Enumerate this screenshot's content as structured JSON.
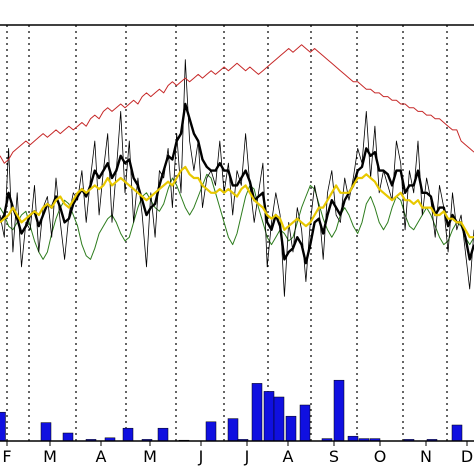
{
  "chart_data": {
    "type": "line",
    "title": "",
    "xlabel": "",
    "ylabel": "",
    "x_ticks": [
      "F",
      "M",
      "A",
      "M",
      "J",
      "J",
      "A",
      "S",
      "O",
      "N",
      "D"
    ],
    "grid": "vertical dotted lines at month boundaries",
    "legend": "none",
    "series": [
      {
        "style": "thin black line",
        "color": "#000000",
        "values": [
          0.5,
          0.44,
          0.68,
          0.4,
          0.56,
          0.36,
          0.48,
          0.46,
          0.58,
          0.4,
          0.52,
          0.55,
          0.44,
          0.6,
          0.48,
          0.38,
          0.5,
          0.56,
          0.54,
          0.62,
          0.48,
          0.6,
          0.7,
          0.5,
          0.62,
          0.72,
          0.48,
          0.62,
          0.78,
          0.56,
          0.7,
          0.48,
          0.6,
          0.5,
          0.36,
          0.56,
          0.44,
          0.62,
          0.6,
          0.68,
          0.52,
          0.72,
          0.56,
          0.92,
          0.7,
          0.62,
          0.7,
          0.52,
          0.6,
          0.62,
          0.58,
          0.7,
          0.56,
          0.64,
          0.5,
          0.62,
          0.58,
          0.72,
          0.58,
          0.48,
          0.56,
          0.64,
          0.36,
          0.48,
          0.56,
          0.5,
          0.28,
          0.48,
          0.4,
          0.52,
          0.46,
          0.32,
          0.48,
          0.58,
          0.52,
          0.38,
          0.56,
          0.62,
          0.5,
          0.48,
          0.6,
          0.54,
          0.6,
          0.68,
          0.64,
          0.78,
          0.6,
          0.74,
          0.56,
          0.62,
          0.58,
          0.54,
          0.7,
          0.64,
          0.46,
          0.62,
          0.56,
          0.7,
          0.5,
          0.6,
          0.54,
          0.44,
          0.58,
          0.52,
          0.4,
          0.56,
          0.46,
          0.5,
          0.4,
          0.3,
          0.46
        ]
      },
      {
        "style": "thick black line",
        "color": "#000000",
        "values": [
          0.48,
          0.5,
          0.56,
          0.52,
          0.49,
          0.45,
          0.47,
          0.5,
          0.51,
          0.47,
          0.5,
          0.53,
          0.52,
          0.55,
          0.52,
          0.48,
          0.49,
          0.53,
          0.55,
          0.57,
          0.55,
          0.58,
          0.62,
          0.6,
          0.62,
          0.64,
          0.6,
          0.62,
          0.66,
          0.64,
          0.65,
          0.6,
          0.58,
          0.54,
          0.5,
          0.52,
          0.53,
          0.58,
          0.62,
          0.66,
          0.65,
          0.7,
          0.72,
          0.8,
          0.76,
          0.72,
          0.7,
          0.65,
          0.63,
          0.62,
          0.62,
          0.64,
          0.62,
          0.62,
          0.58,
          0.58,
          0.6,
          0.62,
          0.59,
          0.54,
          0.55,
          0.56,
          0.48,
          0.46,
          0.5,
          0.47,
          0.38,
          0.4,
          0.41,
          0.44,
          0.42,
          0.37,
          0.42,
          0.48,
          0.49,
          0.45,
          0.5,
          0.54,
          0.52,
          0.5,
          0.54,
          0.56,
          0.58,
          0.62,
          0.63,
          0.68,
          0.66,
          0.67,
          0.62,
          0.62,
          0.61,
          0.58,
          0.62,
          0.62,
          0.56,
          0.58,
          0.58,
          0.62,
          0.56,
          0.56,
          0.55,
          0.5,
          0.52,
          0.52,
          0.47,
          0.5,
          0.48,
          0.48,
          0.44,
          0.38,
          0.42
        ]
      },
      {
        "style": "yellow line",
        "color": "#e8c800",
        "values": [
          0.48,
          0.49,
          0.5,
          0.52,
          0.5,
          0.48,
          0.49,
          0.5,
          0.51,
          0.5,
          0.52,
          0.53,
          0.52,
          0.54,
          0.55,
          0.53,
          0.52,
          0.54,
          0.56,
          0.57,
          0.56,
          0.57,
          0.58,
          0.57,
          0.58,
          0.6,
          0.58,
          0.59,
          0.6,
          0.59,
          0.58,
          0.57,
          0.56,
          0.55,
          0.54,
          0.55,
          0.56,
          0.57,
          0.58,
          0.59,
          0.58,
          0.6,
          0.62,
          0.63,
          0.61,
          0.6,
          0.6,
          0.58,
          0.57,
          0.56,
          0.56,
          0.57,
          0.56,
          0.57,
          0.56,
          0.55,
          0.57,
          0.58,
          0.56,
          0.54,
          0.53,
          0.52,
          0.5,
          0.49,
          0.5,
          0.49,
          0.46,
          0.47,
          0.48,
          0.49,
          0.48,
          0.47,
          0.48,
          0.5,
          0.52,
          0.52,
          0.54,
          0.56,
          0.58,
          0.56,
          0.56,
          0.56,
          0.58,
          0.6,
          0.6,
          0.61,
          0.6,
          0.59,
          0.57,
          0.56,
          0.55,
          0.54,
          0.55,
          0.56,
          0.54,
          0.54,
          0.53,
          0.54,
          0.52,
          0.52,
          0.52,
          0.5,
          0.5,
          0.51,
          0.49,
          0.49,
          0.48,
          0.48,
          0.46,
          0.44,
          0.44
        ]
      },
      {
        "style": "thin green line",
        "color": "#2e7d1e",
        "values": [
          0.52,
          0.5,
          0.47,
          0.46,
          0.48,
          0.5,
          0.51,
          0.47,
          0.43,
          0.4,
          0.38,
          0.4,
          0.45,
          0.49,
          0.52,
          0.54,
          0.53,
          0.5,
          0.47,
          0.42,
          0.39,
          0.38,
          0.41,
          0.45,
          0.47,
          0.49,
          0.5,
          0.48,
          0.45,
          0.43,
          0.44,
          0.48,
          0.52,
          0.55,
          0.56,
          0.54,
          0.52,
          0.51,
          0.53,
          0.57,
          0.6,
          0.58,
          0.55,
          0.52,
          0.5,
          0.52,
          0.55,
          0.58,
          0.61,
          0.6,
          0.56,
          0.52,
          0.48,
          0.44,
          0.42,
          0.45,
          0.5,
          0.55,
          0.58,
          0.57,
          0.52,
          0.48,
          0.44,
          0.42,
          0.44,
          0.46,
          0.45,
          0.43,
          0.44,
          0.48,
          0.52,
          0.55,
          0.58,
          0.57,
          0.53,
          0.49,
          0.46,
          0.44,
          0.46,
          0.5,
          0.52,
          0.5,
          0.47,
          0.45,
          0.48,
          0.53,
          0.55,
          0.52,
          0.48,
          0.46,
          0.48,
          0.52,
          0.55,
          0.54,
          0.5,
          0.47,
          0.46,
          0.48,
          0.5,
          0.52,
          0.5,
          0.47,
          0.44,
          0.42,
          0.43,
          0.46,
          0.48,
          0.47,
          0.44,
          0.42,
          0.44
        ]
      },
      {
        "style": "thin red line",
        "color": "#c62828",
        "values": [
          0.66,
          0.64,
          0.65,
          0.67,
          0.68,
          0.69,
          0.7,
          0.69,
          0.7,
          0.71,
          0.72,
          0.71,
          0.72,
          0.73,
          0.72,
          0.73,
          0.74,
          0.73,
          0.74,
          0.75,
          0.74,
          0.76,
          0.77,
          0.76,
          0.78,
          0.79,
          0.78,
          0.79,
          0.8,
          0.79,
          0.8,
          0.81,
          0.8,
          0.82,
          0.83,
          0.82,
          0.83,
          0.84,
          0.83,
          0.85,
          0.86,
          0.85,
          0.86,
          0.87,
          0.86,
          0.87,
          0.88,
          0.87,
          0.88,
          0.89,
          0.88,
          0.89,
          0.9,
          0.89,
          0.9,
          0.91,
          0.9,
          0.89,
          0.9,
          0.89,
          0.88,
          0.89,
          0.9,
          0.91,
          0.92,
          0.93,
          0.94,
          0.95,
          0.94,
          0.95,
          0.96,
          0.95,
          0.94,
          0.95,
          0.94,
          0.93,
          0.92,
          0.91,
          0.9,
          0.89,
          0.88,
          0.87,
          0.86,
          0.86,
          0.85,
          0.84,
          0.84,
          0.83,
          0.83,
          0.82,
          0.82,
          0.81,
          0.81,
          0.8,
          0.8,
          0.79,
          0.79,
          0.78,
          0.78,
          0.77,
          0.77,
          0.76,
          0.76,
          0.75,
          0.74,
          0.73,
          0.73,
          0.7,
          0.69,
          0.68,
          0.67
        ]
      }
    ],
    "bars": {
      "color": "#1010e0",
      "positions": [
        0.5,
        46,
        68,
        91,
        110,
        128,
        147,
        163,
        184,
        211,
        233,
        243,
        257,
        269,
        279,
        291,
        305,
        327,
        339,
        353,
        364,
        375,
        409,
        432,
        457
      ],
      "values": [
        0.36,
        0.23,
        0.1,
        0.02,
        0.04,
        0.16,
        0.02,
        0.16,
        0.01,
        0.24,
        0.28,
        0.02,
        0.72,
        0.62,
        0.55,
        0.31,
        0.45,
        0.03,
        0.76,
        0.06,
        0.03,
        0.03,
        0.02,
        0.02,
        0.2
      ]
    }
  }
}
